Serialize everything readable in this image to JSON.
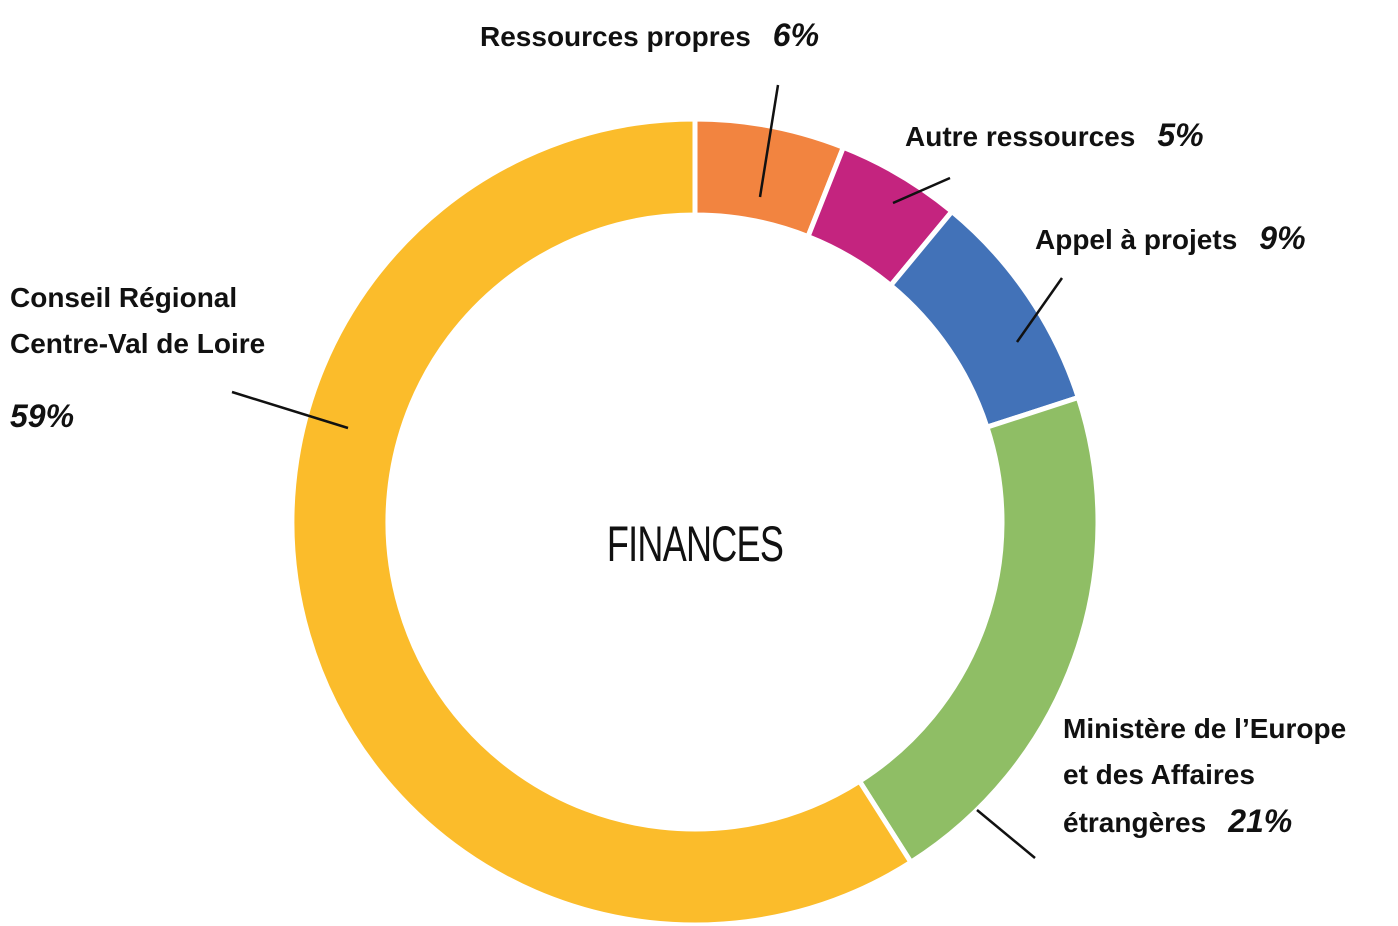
{
  "chart_data": {
    "type": "donut",
    "title": "FINANCES",
    "categories": [
      "Ressources propres",
      "Autre ressources",
      "Appel à projets",
      "Ministère de l’Europe\net des Affaires\nétrangères",
      "Conseil Régional\nCentre-Val de Loire"
    ],
    "values": [
      6,
      5,
      9,
      21,
      59
    ],
    "value_labels": [
      "6%",
      "5%",
      "9%",
      "21%",
      "59%"
    ],
    "colors": [
      "#f28440",
      "#c4247f",
      "#4272b8",
      "#8fbe65",
      "#fbbc2b"
    ]
  }
}
